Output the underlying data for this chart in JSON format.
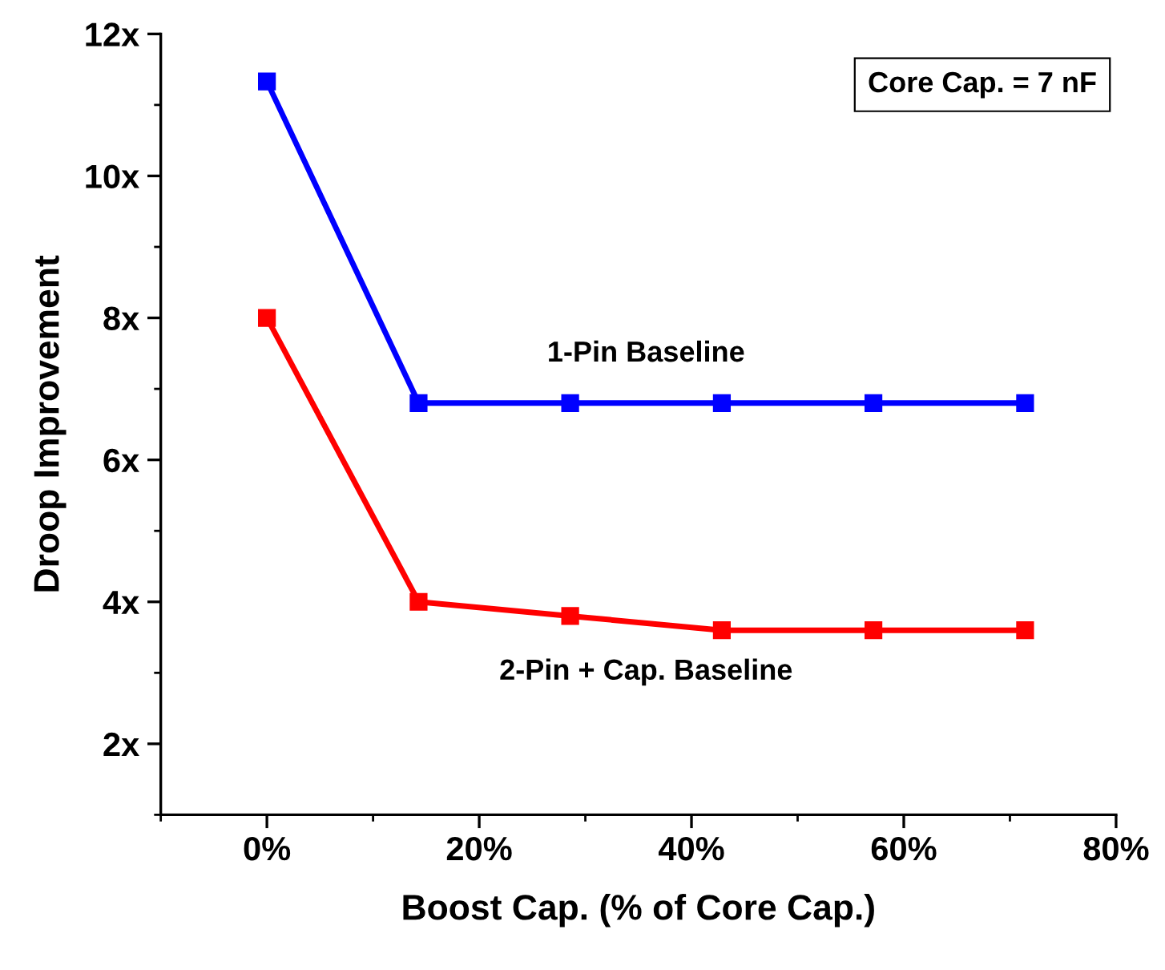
{
  "chart_data": {
    "type": "line",
    "xlabel": "Boost Cap. (% of Core Cap.)",
    "ylabel": "Droop Improvement",
    "x": [
      0,
      14.29,
      28.57,
      42.86,
      57.14,
      71.43
    ],
    "series": [
      {
        "name": "1-Pin Baseline",
        "color": "#0000ff",
        "values": [
          11.33,
          6.8,
          6.8,
          6.8,
          6.8,
          6.8
        ]
      },
      {
        "name": "2-Pin + Cap. Baseline",
        "color": "#ff0000",
        "values": [
          8.0,
          4.0,
          3.8,
          3.6,
          3.6,
          3.6
        ]
      }
    ],
    "xlim": [
      -10,
      80
    ],
    "ylim": [
      1,
      12
    ],
    "xticks": [
      {
        "value": 0,
        "label": "0%"
      },
      {
        "value": 20,
        "label": "20%"
      },
      {
        "value": 40,
        "label": "40%"
      },
      {
        "value": 60,
        "label": "60%"
      },
      {
        "value": 80,
        "label": "80%"
      }
    ],
    "yticks": [
      {
        "value": 2,
        "label": "2x"
      },
      {
        "value": 4,
        "label": "4x"
      },
      {
        "value": 6,
        "label": "6x"
      },
      {
        "value": 8,
        "label": "8x"
      },
      {
        "value": 10,
        "label": "10x"
      },
      {
        "value": 12,
        "label": "12x"
      }
    ],
    "annotations": [
      "Core Cap. = 7 nF"
    ],
    "marker": "square",
    "line_style": "solid",
    "grid": false,
    "legend": false
  }
}
